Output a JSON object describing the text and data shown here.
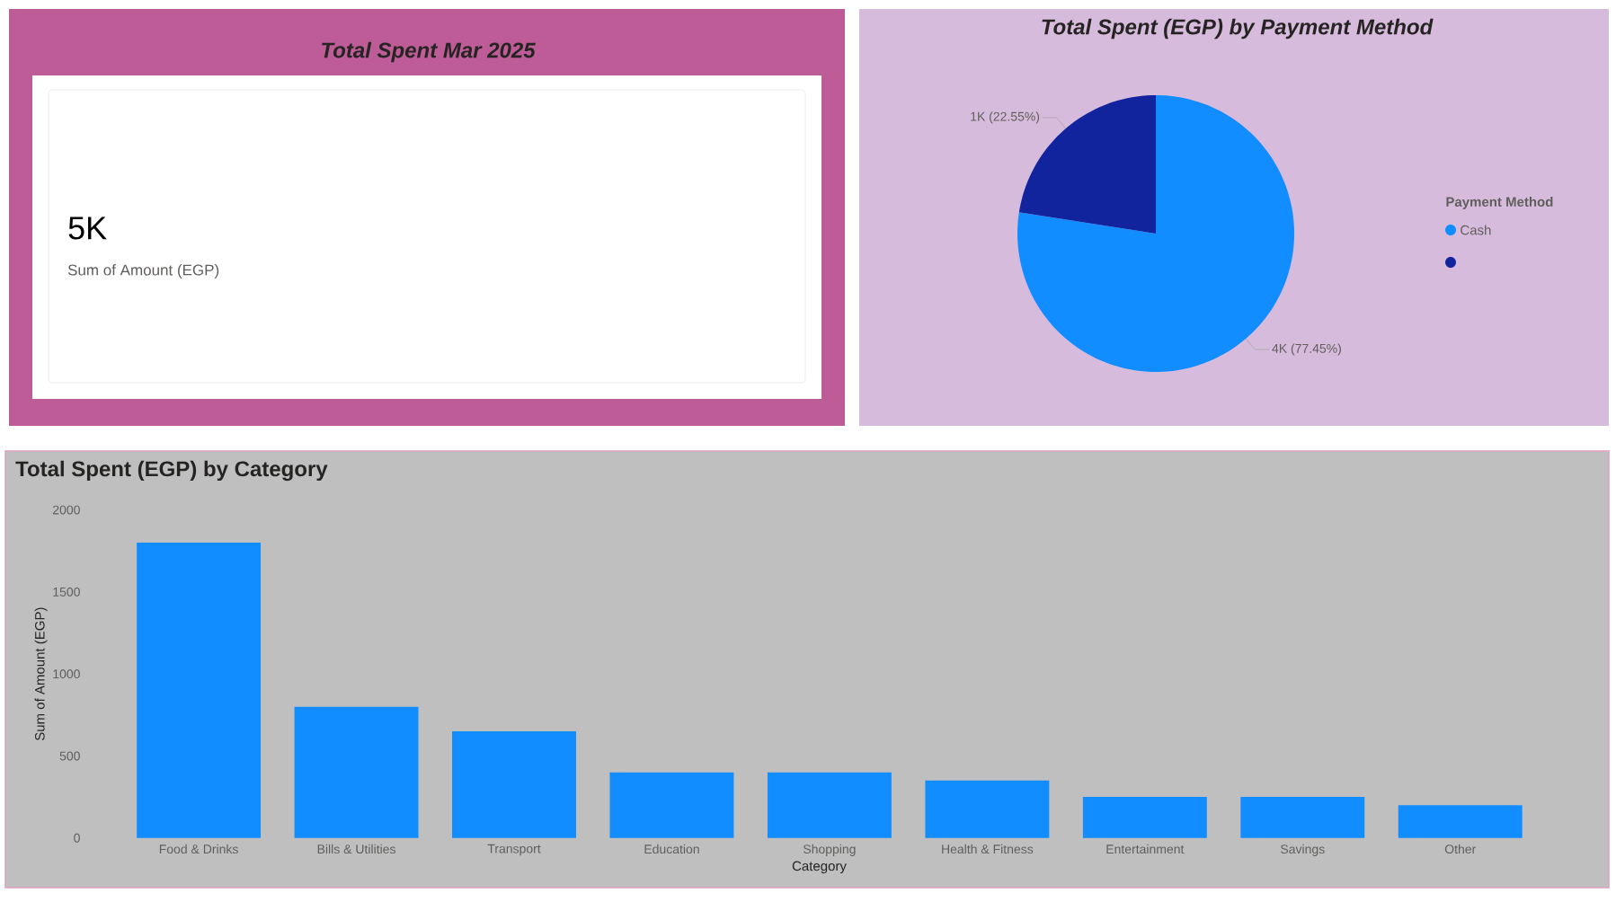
{
  "chart_data": [
    {
      "type": "other",
      "title": "Total Spent Mar 2025",
      "annotations": [
        "5K",
        "Sum of Amount (EGP)"
      ]
    },
    {
      "type": "pie",
      "title": "Total Spent (EGP) by Payment Method",
      "categories": [
        "Cash",
        null
      ],
      "values": [
        77.45,
        22.55
      ],
      "colors": [
        "#118dff",
        "#12239e"
      ],
      "value_labels": [
        "4K (77.45%)",
        "1K (22.55%)"
      ],
      "legend_title": "Payment Method",
      "legend": "right"
    },
    {
      "type": "bar",
      "title": "Total Spent (EGP) by Category",
      "categories": [
        "Food & Drinks",
        "Bills & Utilities",
        "Transport",
        "Education",
        "Shopping",
        "Health & Fitness",
        "Entertainment",
        "Savings",
        "Other"
      ],
      "values": [
        1800,
        800,
        650,
        400,
        400,
        350,
        250,
        250,
        200
      ],
      "color": "#118dff",
      "xlabel": "Category",
      "ylabel": "Sum of Amount (EGP)",
      "ylim": [
        0,
        2000
      ],
      "yticks": [
        0,
        500,
        1000,
        1500,
        2000
      ]
    }
  ]
}
